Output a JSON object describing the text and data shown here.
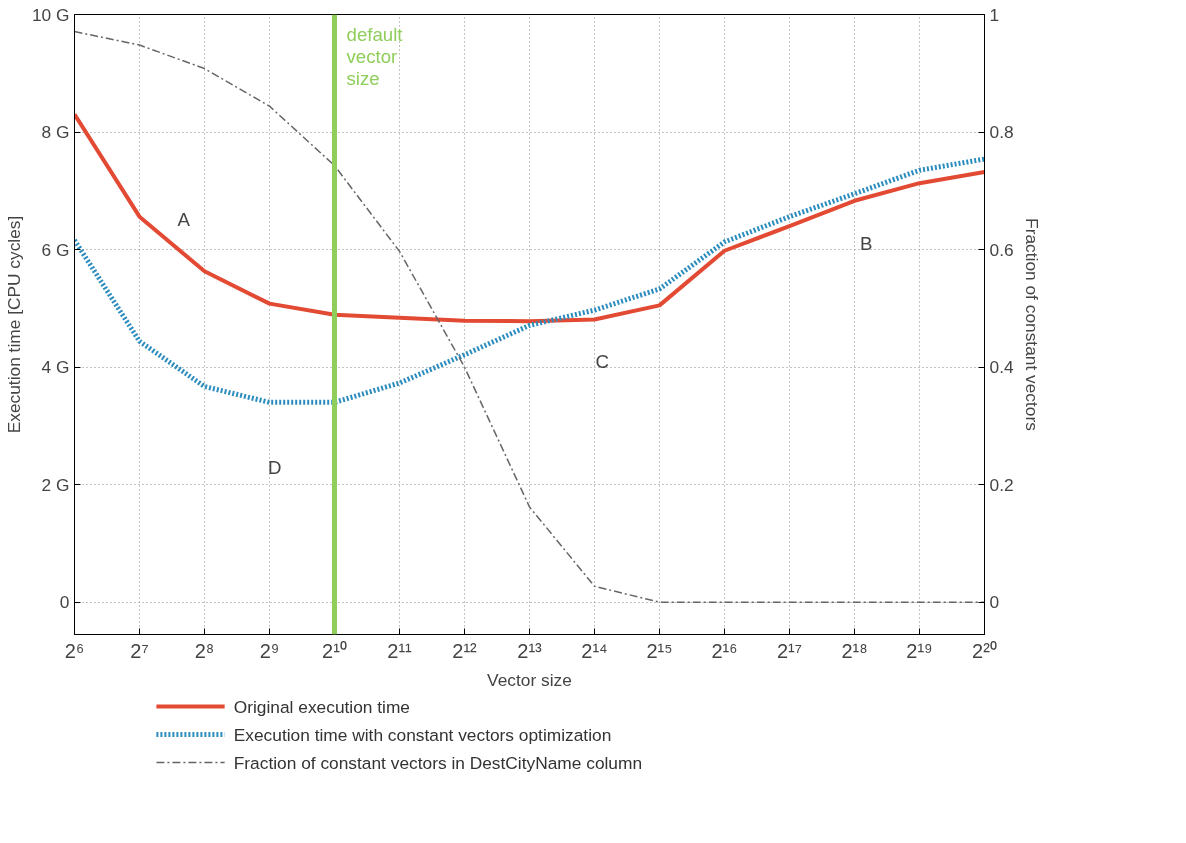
{
  "chart_data": {
    "type": "line",
    "xlabel": "Vector size",
    "ylabel": "Execution time [CPU cycles]",
    "y2label": "Fraction of constant vectors",
    "log": "x",
    "xlim": [
      64,
      1048576
    ],
    "xticks": [
      {
        "value": 64,
        "label": "2⁶"
      },
      {
        "value": 128,
        "label": "2⁷"
      },
      {
        "value": 256,
        "label": "2⁸"
      },
      {
        "value": 512,
        "label": "2⁹"
      },
      {
        "value": 1024,
        "label": "2¹⁰"
      },
      {
        "value": 2048,
        "label": "2¹¹"
      },
      {
        "value": 4096,
        "label": "2¹²"
      },
      {
        "value": 8192,
        "label": "2¹³"
      },
      {
        "value": 16384,
        "label": "2¹⁴"
      },
      {
        "value": 32768,
        "label": "2¹⁵"
      },
      {
        "value": 65536,
        "label": "2¹⁶"
      },
      {
        "value": 131072,
        "label": "2¹⁷"
      },
      {
        "value": 262144,
        "label": "2¹⁸"
      },
      {
        "value": 524288,
        "label": "2¹⁹"
      },
      {
        "value": 1048576,
        "label": "2²⁰"
      }
    ],
    "ylim": [
      -0.55,
      10
    ],
    "yticks": [
      {
        "value": 0,
        "label": "0"
      },
      {
        "value": 2,
        "label": "2 G"
      },
      {
        "value": 4,
        "label": "4 G"
      },
      {
        "value": 6,
        "label": "6 G"
      },
      {
        "value": 8,
        "label": "8 G"
      },
      {
        "value": 10,
        "label": "10 G"
      }
    ],
    "y2lim": [
      -0.055,
      1
    ],
    "y2ticks": [
      0,
      0.2,
      0.4,
      0.6,
      0.8,
      1
    ],
    "x": [
      64,
      128,
      256,
      512,
      1024,
      2048,
      4096,
      8192,
      16384,
      32768,
      65536,
      131072,
      262144,
      524288,
      1048576
    ],
    "series": [
      {
        "name": "Original execution time",
        "color": "#e34a33",
        "line_style": "solid",
        "values": [
          8.3,
          6.56,
          5.63,
          5.08,
          4.89,
          4.84,
          4.79,
          4.78,
          4.81,
          5.05,
          5.98,
          6.4,
          6.83,
          7.13,
          7.32
        ]
      },
      {
        "name": "Execution time with constant vectors optimization",
        "color": "#2b8cbe",
        "line_style": "dotted",
        "values": [
          6.16,
          4.44,
          3.67,
          3.4,
          3.4,
          3.73,
          4.21,
          4.71,
          4.97,
          5.33,
          6.13,
          6.56,
          6.95,
          7.35,
          7.54
        ]
      },
      {
        "name": "Fraction of constant vectors in DestCityName column",
        "color": "#666666",
        "line_style": "dashdot",
        "axis": "y2",
        "values": [
          0.971,
          0.948,
          0.908,
          0.844,
          0.743,
          0.597,
          0.4,
          0.162,
          0.027,
          0,
          0,
          0,
          0,
          0,
          0
        ]
      }
    ],
    "ref_lines": [
      {
        "axis": "x",
        "value": 1024,
        "label": "default vector size",
        "color": "#8fce5a"
      }
    ],
    "annotations": [
      "A",
      "B",
      "C",
      "D"
    ],
    "grid": true,
    "legend": "bottom",
    "marker": "none"
  }
}
